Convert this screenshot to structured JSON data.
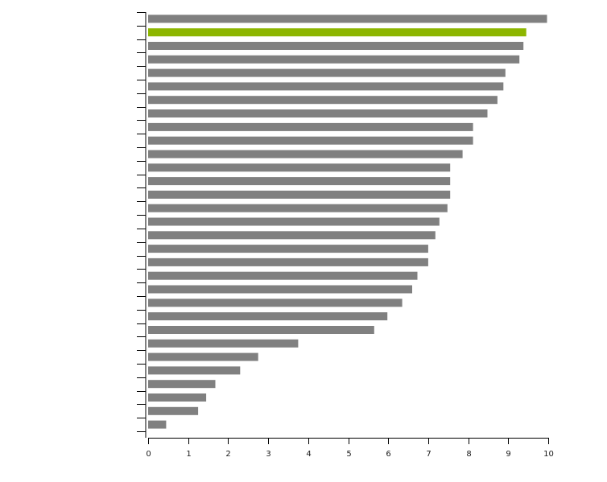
{
  "chart_data": {
    "type": "bar",
    "orientation": "horizontal",
    "title": "",
    "xlabel": "",
    "ylabel": "",
    "xlim": [
      0,
      10
    ],
    "x_ticks": [
      "0",
      "1",
      "2",
      "3",
      "4",
      "5",
      "6",
      "7",
      "8",
      "9",
      "10"
    ],
    "categories": [
      "",
      "",
      "",
      "",
      "",
      "",
      "",
      "",
      "",
      "",
      "",
      "",
      "",
      "",
      "",
      "",
      "",
      "",
      "",
      "",
      "",
      "",
      "",
      "",
      "",
      "",
      "",
      "",
      "",
      "",
      ""
    ],
    "values": [
      9.97,
      9.45,
      9.38,
      9.28,
      8.93,
      8.88,
      8.73,
      8.48,
      8.12,
      8.12,
      7.86,
      7.55,
      7.55,
      7.55,
      7.48,
      7.28,
      7.18,
      7.0,
      7.0,
      6.73,
      6.6,
      6.35,
      5.98,
      5.65,
      3.75,
      2.75,
      2.3,
      1.68,
      1.45,
      1.25,
      0.45
    ],
    "highlight_index": 1,
    "colors": {
      "bar": "#808080",
      "highlight": "#8db600",
      "axis": "#000000"
    },
    "grid": false,
    "legend": "none"
  }
}
